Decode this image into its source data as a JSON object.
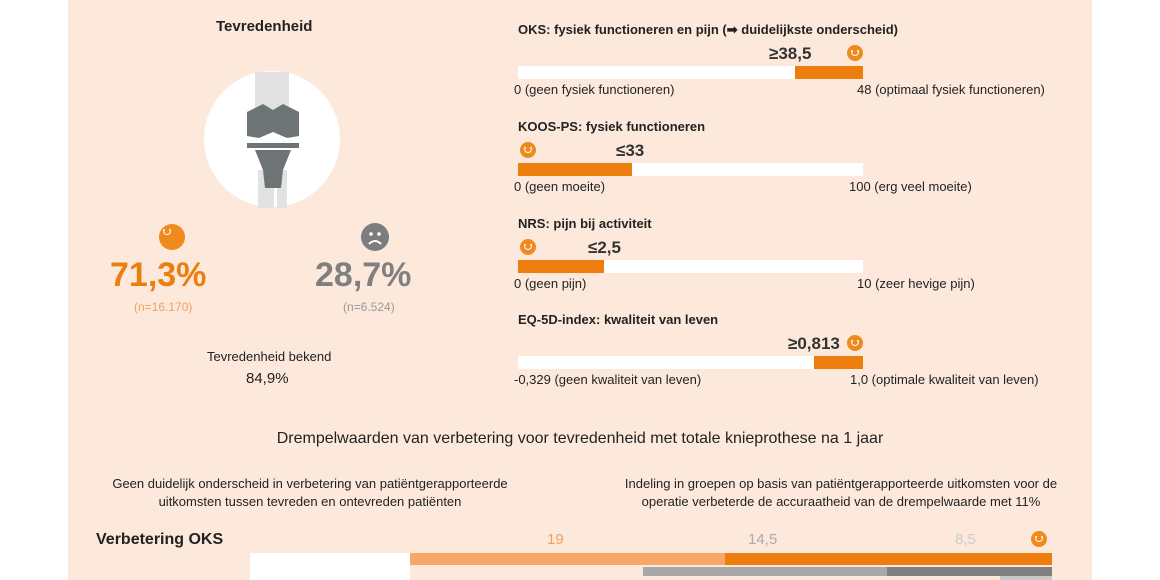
{
  "left": {
    "title": "Tevredenheid",
    "satisfied": {
      "pct": "71,3%",
      "n": "(n=16.170)",
      "icon": "smiley-happy-icon"
    },
    "dissatisfied": {
      "pct": "28,7%",
      "n": "(n=6.524)",
      "icon": "smiley-sad-icon"
    },
    "known_label": "Tevredenheid bekend",
    "known_value": "84,9%"
  },
  "measures": [
    {
      "title": "OKS: fysiek functioneren en pijn (➡ duidelijkste onderscheid)",
      "threshold": "≥38,5",
      "min_label": "0 (geen fysiek functioneren)",
      "max_label": "48 (optimaal fysiek functioneren)",
      "min": 0,
      "max": 48,
      "value": 38.5,
      "direction": "high"
    },
    {
      "title": "KOOS-PS: fysiek functioneren",
      "threshold": "≤33",
      "min_label": "0 (geen moeite)",
      "max_label": "100 (erg veel moeite)",
      "min": 0,
      "max": 100,
      "value": 33,
      "direction": "low"
    },
    {
      "title": "NRS: pijn bij activiteit",
      "threshold": "≤2,5",
      "min_label": "0 (geen pijn)",
      "max_label": "10 (zeer hevige pijn)",
      "min": 0,
      "max": 10,
      "value": 2.5,
      "direction": "low"
    },
    {
      "title": "EQ-5D-index: kwaliteit van leven",
      "threshold": "≥0,813",
      "min_label": "-0,329 (geen kwaliteit van leven)",
      "max_label": "1,0 (optimale kwaliteit van leven)",
      "min": -0.329,
      "max": 1.0,
      "value": 0.813,
      "direction": "high"
    }
  ],
  "bottom": {
    "title": "Drempelwaarden van verbetering voor tevredenheid met totale knieprothese na 1 jaar",
    "left_note": "Geen duidelijk onderscheid in verbetering van patiëntgerapporteerde uitkomsten tussen tevreden en ontevreden patiënten",
    "right_note": "Indeling in groepen op basis van patiëntgerapporteerde uitkomsten voor de operatie verbeterde de accuraatheid van de drempelwaarde met 11%",
    "row_label": "Verbetering OKS",
    "values": [
      "19",
      "14,5",
      "8,5"
    ]
  },
  "colors": {
    "orange": "#ed7d0c",
    "light_orange": "#f5a867",
    "gray": "#8c8c8c",
    "light_gray": "#bdbdbd",
    "panel": "#fde9dc"
  }
}
